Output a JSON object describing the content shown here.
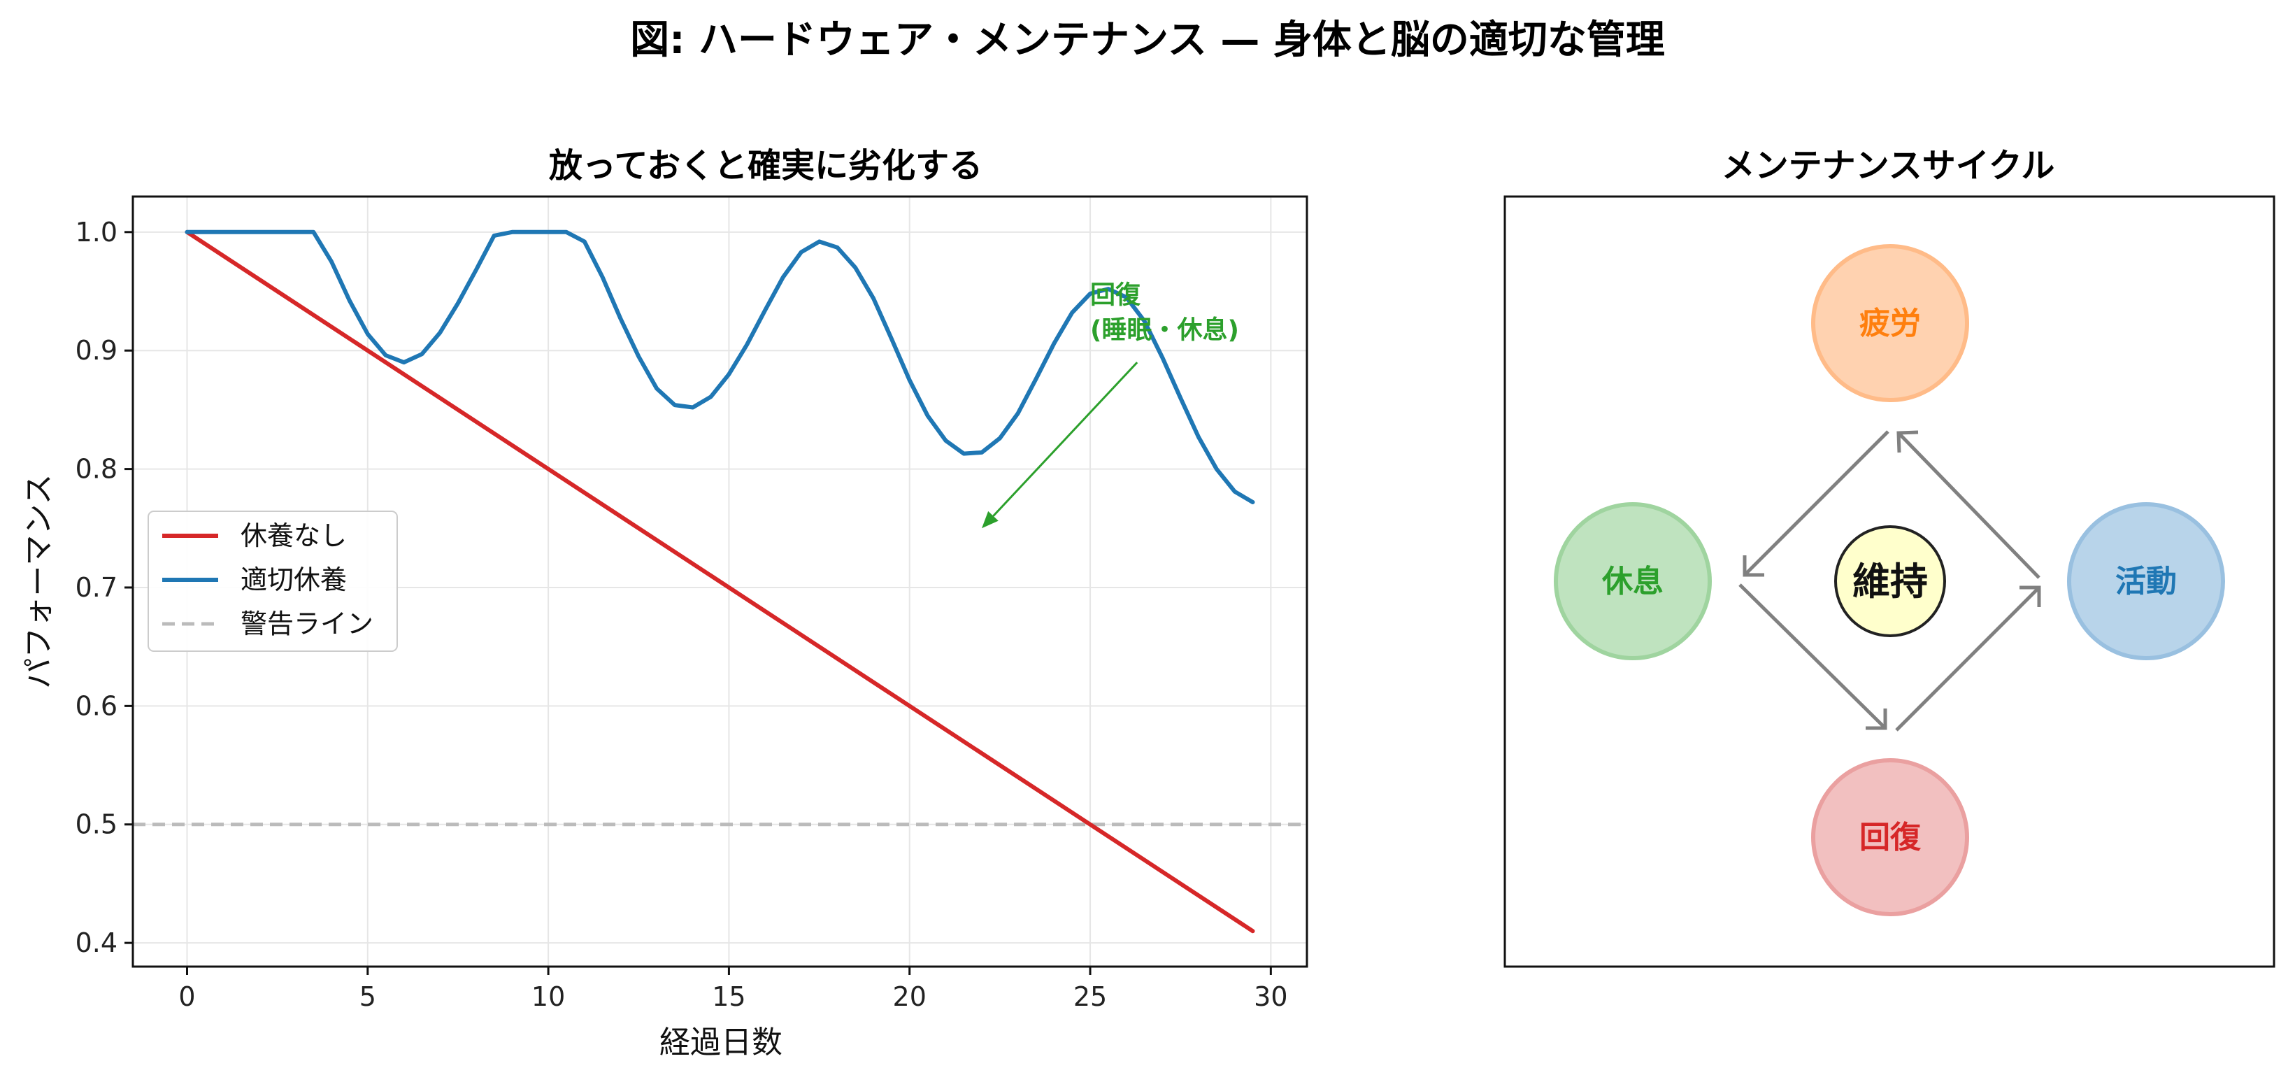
{
  "figure": {
    "suptitle": "図: ハードウェア・メンテナンス — 身体と脳の適切な管理"
  },
  "chart_data": [
    {
      "type": "line",
      "title": "放っておくと確実に劣化する",
      "xlabel": "経過日数",
      "ylabel": "パフォーマンス",
      "xlim": [
        -1.5,
        31
      ],
      "ylim": [
        0.38,
        1.03
      ],
      "xticks": [
        0,
        5,
        10,
        15,
        20,
        25,
        30
      ],
      "yticks": [
        0.4,
        0.5,
        0.6,
        0.7,
        0.8,
        0.9,
        1.0
      ],
      "ytick_labels": [
        "0.4",
        "0.5",
        "0.6",
        "0.7",
        "0.8",
        "0.9",
        "1.0"
      ],
      "grid": true,
      "legend_position": "center-left",
      "series": [
        {
          "name": "休養なし",
          "color": "#d62728",
          "style": "solid",
          "x": [
            0,
            29.5
          ],
          "y": [
            1.0,
            0.41
          ]
        },
        {
          "name": "適切休養",
          "color": "#1f77b4",
          "style": "solid",
          "x": [
            0,
            0.5,
            1,
            1.5,
            2,
            2.5,
            3,
            3.5,
            4,
            4.5,
            5,
            5.5,
            6,
            6.5,
            7,
            7.5,
            8,
            8.5,
            9,
            9.5,
            10,
            10.5,
            11,
            11.5,
            12,
            12.5,
            13,
            13.5,
            14,
            14.5,
            15,
            15.5,
            16,
            16.5,
            17,
            17.5,
            18,
            18.5,
            19,
            19.5,
            20,
            20.5,
            21,
            21.5,
            22,
            22.5,
            23,
            23.5,
            24,
            24.5,
            25,
            25.5,
            26,
            26.5,
            27,
            27.5,
            28,
            28.5,
            29,
            29.5
          ],
          "y": [
            1.0,
            1.0,
            1.0,
            1.0,
            1.0,
            1.0,
            1.0,
            1.0,
            0.975,
            0.942,
            0.914,
            0.896,
            0.89,
            0.897,
            0.915,
            0.94,
            0.968,
            0.997,
            1.0,
            1.0,
            1.0,
            1.0,
            0.992,
            0.962,
            0.927,
            0.895,
            0.868,
            0.854,
            0.852,
            0.861,
            0.88,
            0.905,
            0.934,
            0.962,
            0.983,
            0.992,
            0.987,
            0.97,
            0.944,
            0.91,
            0.875,
            0.845,
            0.824,
            0.813,
            0.814,
            0.826,
            0.847,
            0.876,
            0.906,
            0.932,
            0.948,
            0.952,
            0.945,
            0.925,
            0.894,
            0.86,
            0.827,
            0.8,
            0.781,
            0.772
          ]
        },
        {
          "name": "警告ライン",
          "color": "#bbbbbb",
          "style": "dashed",
          "x": [
            -1.5,
            31
          ],
          "y": [
            0.5,
            0.5
          ]
        }
      ],
      "annotation": {
        "text_line1": "回復",
        "text_line2": "(睡眠・休息)",
        "color": "#2ca02c",
        "text_x": 25,
        "text_y": 0.94,
        "arrow_from": [
          26.3,
          0.89
        ],
        "arrow_to": [
          22,
          0.75
        ]
      }
    },
    {
      "type": "diagram",
      "title": "メンテナンスサイクル",
      "center": "維持",
      "nodes": [
        {
          "label": "疲労",
          "fill": "#ffd2b0",
          "stroke": "#ffbb88",
          "text_color": "#ff7f0e"
        },
        {
          "label": "活動",
          "fill": "#b8d4ea",
          "stroke": "#99c0e0",
          "text_color": "#1f77b4"
        },
        {
          "label": "回復",
          "fill": "#f2c0c0",
          "stroke": "#eaa0a0",
          "text_color": "#d62728"
        },
        {
          "label": "休息",
          "fill": "#bfe3bf",
          "stroke": "#9fd49f",
          "text_color": "#2ca02c"
        }
      ]
    }
  ]
}
